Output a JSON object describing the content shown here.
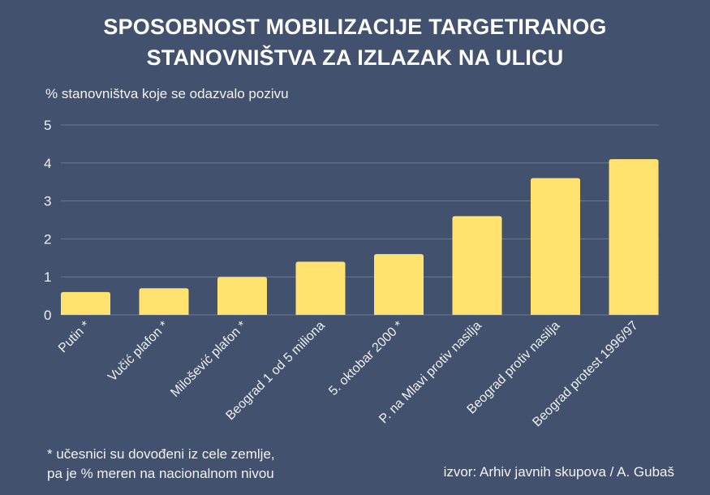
{
  "chart_data": {
    "type": "bar",
    "title": "SPOSOBNOST MOBILIZACIJE TARGETIRANOG STANOVNIŠTVA ZA IZLAZAK NA ULICU",
    "title_lines": [
      "SPOSOBNOST MOBILIZACIJE TARGETIRANOG",
      "STANOVNIŠTVA ZA IZLAZAK NA ULICU"
    ],
    "ylabel": "% stanovništva koje se odazvalo pozivu",
    "xlabel": "",
    "ylim": [
      0,
      5
    ],
    "yticks": [
      "0",
      "1",
      "2",
      "3",
      "4",
      "5"
    ],
    "grid": true,
    "categories": [
      "Putin *",
      "Vučić plafon *",
      "Milošević plafon *",
      "Beograd 1 od 5 miliona",
      "5. oktobar 2000 *",
      "P. na Mlavi protiv nasilja",
      "Beograd protiv nasilja",
      "Beograd protest 1996/97"
    ],
    "values": [
      0.6,
      0.7,
      1.0,
      1.4,
      1.6,
      2.6,
      3.6,
      4.1
    ],
    "colors": {
      "background": "#42526e",
      "bar": "#ffe36e",
      "grid": "#6b7a93"
    }
  },
  "footnote": [
    "* učesnici su dovođeni iz cele zemlje,",
    "pa je % meren na nacionalnom nivou"
  ],
  "source": "izvor: Arhiv javnih skupova / A. Gubaš"
}
